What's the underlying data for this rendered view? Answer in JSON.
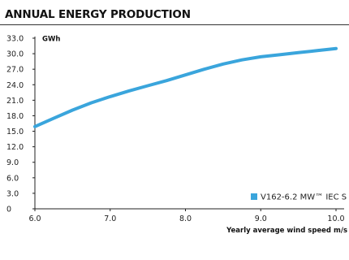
{
  "chart_data": {
    "type": "line",
    "title": "ANNUAL ENERGY PRODUCTION",
    "ylabel": "GWh",
    "xlabel": "Yearly average wind speed m/s",
    "x": [
      6.0,
      6.25,
      6.5,
      6.75,
      7.0,
      7.25,
      7.5,
      7.75,
      8.0,
      8.25,
      8.5,
      8.75,
      9.0,
      9.25,
      9.5,
      9.75,
      10.0
    ],
    "series": [
      {
        "name": "V162-6.2 MW™ IEC S",
        "color": "#3aa5dc",
        "values": [
          15.9,
          17.5,
          19.1,
          20.5,
          21.7,
          22.8,
          23.8,
          24.8,
          25.9,
          27.0,
          28.0,
          28.8,
          29.4,
          29.8,
          30.2,
          30.6,
          31.0
        ]
      }
    ],
    "xticks": [
      "6.0",
      "7.0",
      "8.0",
      "9.0",
      "10.0"
    ],
    "yticks": [
      "0",
      "3.0",
      "6.0",
      "9.0",
      "12.0",
      "15.0",
      "18.0",
      "21.0",
      "24.0",
      "27.0",
      "30.0",
      "33.0"
    ],
    "xlim": [
      6.0,
      10.0
    ],
    "ylim": [
      0,
      33
    ],
    "grid": false,
    "legend_position": "bottom-right"
  }
}
